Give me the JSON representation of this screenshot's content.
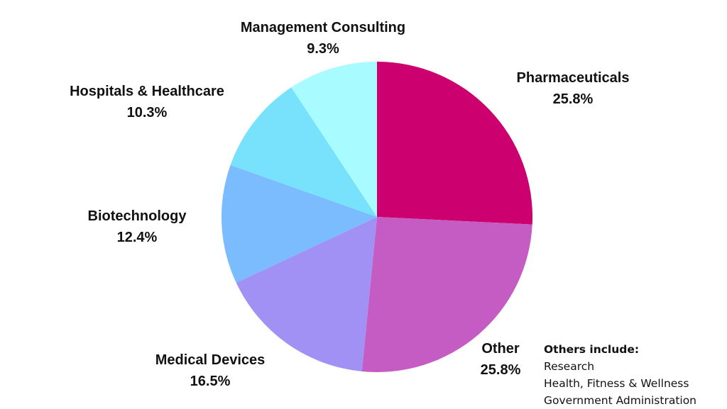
{
  "chart_data": {
    "type": "pie",
    "title": "",
    "slices": [
      {
        "label": "Pharmaceuticals",
        "value": 25.8,
        "display": "25.8%",
        "color": "#CC006E"
      },
      {
        "label": "Other",
        "value": 25.8,
        "display": "25.8%",
        "color": "#C45CC3"
      },
      {
        "label": "Medical Devices",
        "value": 16.5,
        "display": "16.5%",
        "color": "#A191F5"
      },
      {
        "label": "Biotechnology",
        "value": 12.4,
        "display": "12.4%",
        "color": "#7BBCFF"
      },
      {
        "label": "Hospitals & Healthcare",
        "value": 10.3,
        "display": "10.3%",
        "color": "#78E1FC"
      },
      {
        "label": "Management Consulting",
        "value": 9.3,
        "display": "9.3%",
        "color": "#A8FCFF"
      }
    ],
    "start_angle": "12 o'clock",
    "direction": "clockwise",
    "legend": "none",
    "label_placement": "outside"
  },
  "note": {
    "title": "Others include:",
    "items": [
      "Research",
      "Health, Fitness & Wellness",
      "Government Administration"
    ]
  }
}
